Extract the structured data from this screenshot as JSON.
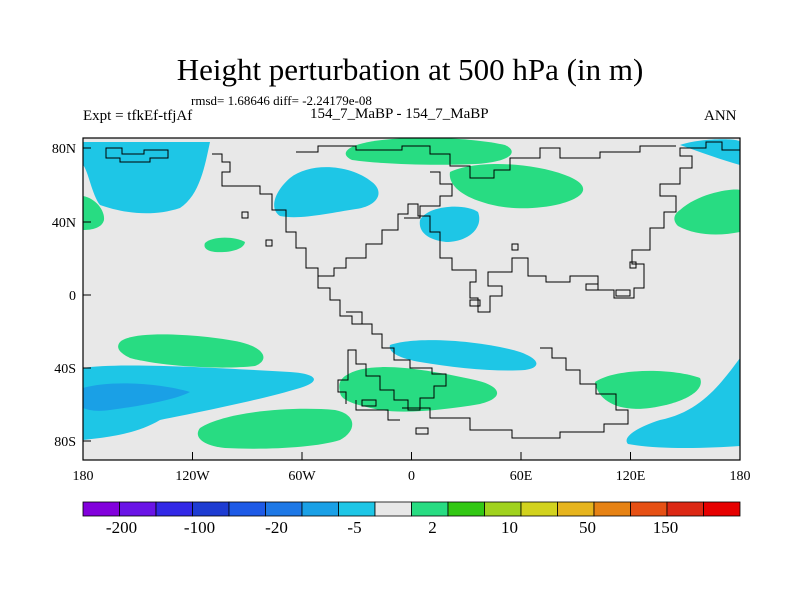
{
  "title": "Height perturbation at 500 hPa (in m)",
  "stats": "rmsd= 1.68646 diff= -2.24179e-08",
  "left_label": "Expt = tfkEf-tfjAf",
  "center_label": "154_7_MaBP - 154_7_MaBP",
  "right_label": "ANN",
  "axes": {
    "x_ticks": [
      "180",
      "120W",
      "60W",
      "0",
      "60E",
      "120E",
      "180"
    ],
    "y_ticks": [
      "80N",
      "40N",
      "0",
      "40S",
      "80S"
    ]
  },
  "colors": {
    "background": "#e8e8e8",
    "negative_light": "#1ec6e6",
    "negative_mid": "#1aa0e6",
    "positive_light": "#28dc82",
    "coastline": "#000000"
  },
  "colorbar": {
    "colors": [
      "#8200dc",
      "#6a14e6",
      "#3228e6",
      "#1e3cd2",
      "#1e5ae6",
      "#1e78e6",
      "#1aa0e6",
      "#1ec6e6",
      "#e8e8e8",
      "#28dc82",
      "#32c814",
      "#a0d21e",
      "#d2d21e",
      "#e6b41e",
      "#e68214",
      "#e65014",
      "#dc2814",
      "#e60000"
    ],
    "labels": [
      "-200",
      "-100",
      "-20",
      "-5",
      "2",
      "10",
      "50",
      "150"
    ]
  }
}
